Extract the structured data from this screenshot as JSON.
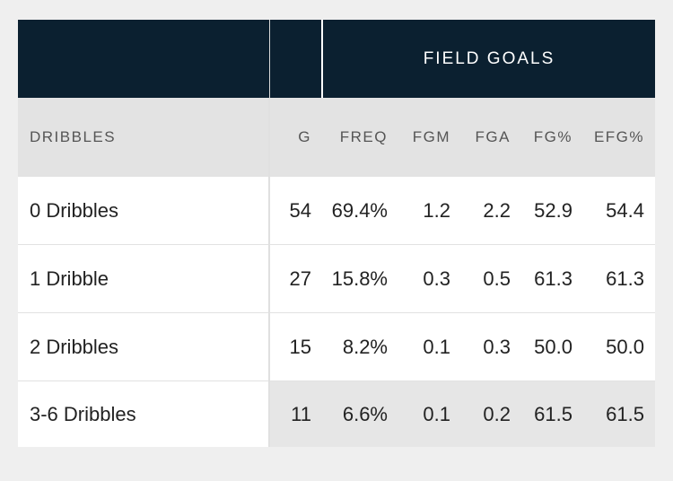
{
  "table": {
    "group_header": "FIELD GOALS",
    "columns": {
      "name": "DRIBBLES",
      "g": "G",
      "freq": "FREQ",
      "fgm": "FGM",
      "fga": "FGA",
      "fgp": "FG%",
      "efg": "EFG%"
    },
    "rows": [
      {
        "name": "0 Dribbles",
        "g": "54",
        "freq": "69.4%",
        "fgm": "1.2",
        "fga": "2.2",
        "fgp": "52.9",
        "efg": "54.4"
      },
      {
        "name": "1 Dribble",
        "g": "27",
        "freq": "15.8%",
        "fgm": "0.3",
        "fga": "0.5",
        "fgp": "61.3",
        "efg": "61.3"
      },
      {
        "name": "2 Dribbles",
        "g": "15",
        "freq": "8.2%",
        "fgm": "0.1",
        "fga": "0.3",
        "fgp": "50.0",
        "efg": "50.0"
      },
      {
        "name": "3-6 Dribbles",
        "g": "11",
        "freq": "6.6%",
        "fgm": "0.1",
        "fga": "0.2",
        "fgp": "61.5",
        "efg": "61.5"
      }
    ]
  },
  "colors": {
    "header_bg": "#0b2030",
    "subheader_bg": "#e3e3e3",
    "highlight_row_bg": "#e6e6e6"
  }
}
